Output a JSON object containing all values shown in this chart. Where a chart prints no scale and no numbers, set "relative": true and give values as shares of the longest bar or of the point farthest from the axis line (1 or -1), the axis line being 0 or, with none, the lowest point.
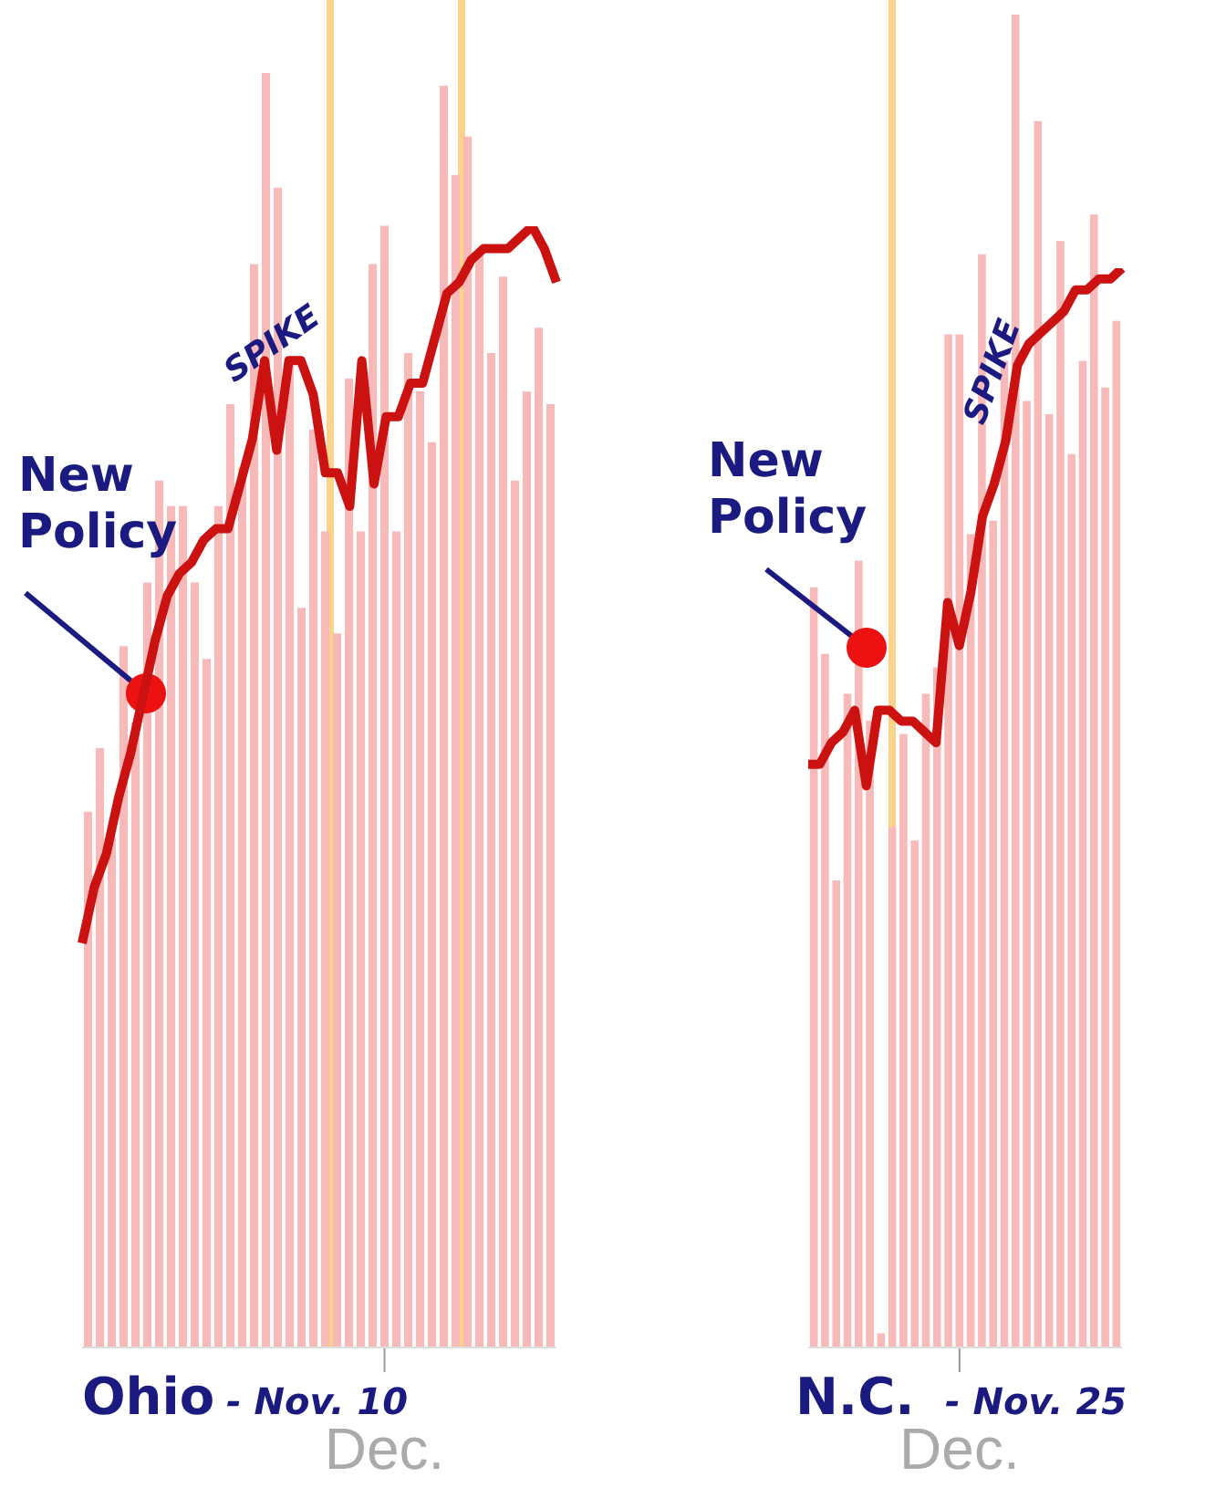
{
  "chart_data": [
    {
      "type": "bar",
      "title": "Ohio",
      "relative": true,
      "legend": false,
      "annotations": [
        "- Nov. 10",
        "New Policy",
        "SPIKE",
        "Dec."
      ],
      "categories": [
        null,
        null,
        null,
        null,
        null,
        null,
        null,
        null,
        null,
        null,
        null,
        null,
        null,
        null,
        null,
        null,
        null,
        null,
        null,
        null,
        null,
        null,
        null,
        null,
        null,
        null,
        null,
        null,
        null,
        null,
        null,
        null,
        null,
        null,
        null,
        null,
        null,
        null,
        null,
        null
      ],
      "series": [
        {
          "color": "#f8b9b9",
          "values": [
            0.42,
            0.47,
            0.4,
            0.55,
            0.49,
            0.6,
            0.68,
            0.66,
            0.66,
            0.6,
            0.54,
            0.66,
            0.74,
            0.69,
            0.85,
            1.0,
            0.91,
            0.77,
            0.58,
            0.72,
            0.64,
            0.56,
            0.76,
            0.64,
            0.85,
            0.88,
            0.64,
            0.78,
            0.75,
            0.71,
            0.99,
            0.92,
            0.95,
            0.86,
            0.78,
            0.84,
            0.68,
            0.75,
            0.8,
            0.74
          ]
        }
      ]
    },
    {
      "type": "line",
      "relative": true,
      "legend": false,
      "categories": [
        null,
        null,
        null,
        null,
        null,
        null,
        null,
        null,
        null,
        null,
        null,
        null,
        null,
        null,
        null,
        null,
        null,
        null,
        null,
        null,
        null,
        null,
        null,
        null,
        null,
        null,
        null,
        null,
        null,
        null,
        null,
        null,
        null,
        null,
        null,
        null,
        null,
        null,
        null,
        null
      ],
      "series": [
        {
          "color": "#cc1111",
          "values": [
            0.36,
            0.41,
            0.44,
            0.49,
            0.53,
            0.58,
            0.63,
            0.67,
            0.69,
            0.7,
            0.72,
            0.73,
            0.73,
            0.77,
            0.81,
            0.88,
            0.8,
            0.88,
            0.88,
            0.85,
            0.78,
            0.78,
            0.75,
            0.88,
            0.77,
            0.83,
            0.83,
            0.86,
            0.86,
            0.9,
            0.94,
            0.95,
            0.97,
            0.98,
            0.98,
            0.98,
            0.99,
            1.0,
            0.98,
            0.95
          ]
        }
      ]
    },
    {
      "type": "bar",
      "title": "N.C.",
      "relative": true,
      "legend": false,
      "annotations": [
        "- Nov. 25",
        "New Policy",
        "SPIKE",
        "Dec."
      ],
      "categories": [
        null,
        null,
        null,
        null,
        null,
        null,
        null,
        null,
        null,
        null,
        null,
        null,
        null,
        null,
        null,
        null,
        null,
        null,
        null,
        null,
        null,
        null,
        null,
        null,
        null,
        null,
        null,
        null
      ],
      "series": [
        {
          "color": "#f8b9b9",
          "values": [
            0.57,
            0.52,
            0.35,
            0.49,
            0.59,
            0.47,
            0.01,
            0.39,
            0.46,
            0.38,
            0.49,
            0.51,
            0.76,
            0.76,
            0.61,
            0.82,
            0.62,
            0.74,
            1.0,
            0.71,
            0.92,
            0.7,
            0.83,
            0.67,
            0.74,
            0.85,
            0.72,
            0.77
          ]
        }
      ]
    },
    {
      "type": "line",
      "relative": true,
      "legend": false,
      "categories": [
        null,
        null,
        null,
        null,
        null,
        null,
        null,
        null,
        null,
        null,
        null,
        null,
        null,
        null,
        null,
        null,
        null,
        null,
        null,
        null,
        null,
        null,
        null,
        null,
        null,
        null,
        null,
        null
      ],
      "series": [
        {
          "color": "#cc1111",
          "values": [
            0.54,
            0.54,
            0.56,
            0.57,
            0.59,
            0.52,
            0.59,
            0.59,
            0.58,
            0.58,
            0.57,
            0.56,
            0.69,
            0.65,
            0.7,
            0.77,
            0.8,
            0.84,
            0.91,
            0.93,
            0.94,
            0.95,
            0.96,
            0.98,
            0.98,
            0.99,
            0.99,
            1.0
          ]
        }
      ]
    }
  ]
}
